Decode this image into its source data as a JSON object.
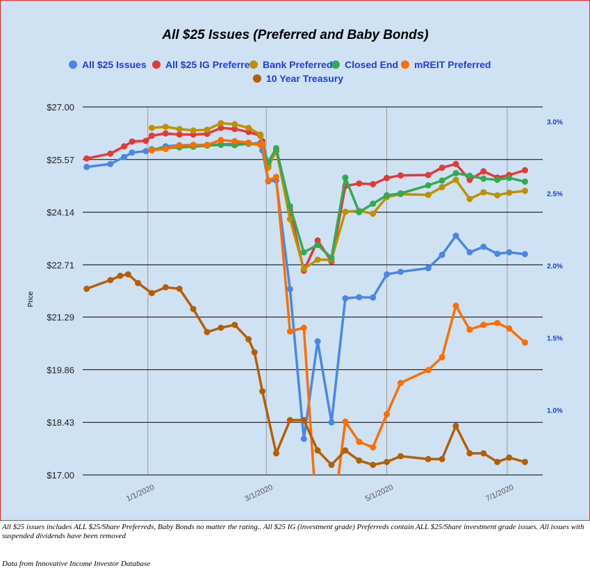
{
  "chart_data": {
    "type": "line",
    "title": "All $25 Issues (Preferred and Baby Bonds)",
    "ylabel": "Price",
    "ylim": [
      17.0,
      27.0
    ],
    "y_ticks": [
      "$27.00",
      "$25.57",
      "$24.14",
      "$22.71",
      "$21.29",
      "$19.86",
      "$18.43",
      "$17.00"
    ],
    "y_tick_values": [
      27.0,
      25.57,
      24.14,
      22.71,
      21.29,
      19.86,
      18.43,
      17.0
    ],
    "y2lim": [
      0.55,
      3.1
    ],
    "y2_ticks": [
      "3.0%",
      "2.5%",
      "2.0%",
      "1.5%",
      "1.0%"
    ],
    "y2_tick_values": [
      3.0,
      2.5,
      2.0,
      1.5,
      1.0
    ],
    "xlim": [
      "2019-11-29",
      "2020-07-19"
    ],
    "x_ticks": [
      "1/1/2020",
      "3/1/2020",
      "5/1/2020",
      "7/1/2020"
    ],
    "x_tick_dates": [
      "2020-01-01",
      "2020-03-01",
      "2020-05-01",
      "2020-07-01"
    ],
    "grid": true,
    "legend_position": "top",
    "series": [
      {
        "name": "All $25 Issues",
        "color": "#4a86e8",
        "axis": "left",
        "points": [
          [
            "2019-12-01",
            25.37
          ],
          [
            "2019-12-13",
            25.45
          ],
          [
            "2019-12-20",
            25.64
          ],
          [
            "2019-12-24",
            25.76
          ],
          [
            "2019-12-31",
            25.8
          ],
          [
            "2020-01-03",
            25.82
          ],
          [
            "2020-01-10",
            25.93
          ],
          [
            "2020-01-17",
            25.96
          ],
          [
            "2020-01-24",
            25.95
          ],
          [
            "2020-01-31",
            25.97
          ],
          [
            "2020-02-07",
            25.98
          ],
          [
            "2020-02-14",
            26.0
          ],
          [
            "2020-02-21",
            26.0
          ],
          [
            "2020-02-27",
            26.02
          ],
          [
            "2020-02-28",
            25.82
          ],
          [
            "2020-03-02",
            24.98
          ],
          [
            "2020-03-06",
            25.0
          ],
          [
            "2020-03-13",
            22.05
          ],
          [
            "2020-03-20",
            17.98
          ],
          [
            "2020-03-27",
            20.63
          ],
          [
            "2020-04-03",
            18.43
          ],
          [
            "2020-04-10",
            21.8
          ],
          [
            "2020-04-17",
            21.83
          ],
          [
            "2020-04-24",
            21.82
          ],
          [
            "2020-05-01",
            22.45
          ],
          [
            "2020-05-08",
            22.52
          ],
          [
            "2020-05-22",
            22.62
          ],
          [
            "2020-05-29",
            22.98
          ],
          [
            "2020-06-05",
            23.5
          ],
          [
            "2020-06-12",
            23.05
          ],
          [
            "2020-06-19",
            23.2
          ],
          [
            "2020-06-26",
            23.01
          ],
          [
            "2020-07-02",
            23.05
          ],
          [
            "2020-07-10",
            23.0
          ]
        ]
      },
      {
        "name": "All $25 IG Preferred",
        "color": "#e53935",
        "axis": "left",
        "points": [
          [
            "2019-12-01",
            25.6
          ],
          [
            "2019-12-13",
            25.73
          ],
          [
            "2019-12-20",
            25.93
          ],
          [
            "2019-12-24",
            26.06
          ],
          [
            "2019-12-31",
            26.08
          ],
          [
            "2020-01-03",
            26.22
          ],
          [
            "2020-01-10",
            26.28
          ],
          [
            "2020-01-17",
            26.25
          ],
          [
            "2020-01-24",
            26.25
          ],
          [
            "2020-01-31",
            26.27
          ],
          [
            "2020-02-07",
            26.43
          ],
          [
            "2020-02-14",
            26.4
          ],
          [
            "2020-02-21",
            26.32
          ],
          [
            "2020-02-27",
            26.22
          ],
          [
            "2020-02-28",
            26.07
          ],
          [
            "2020-03-02",
            25.4
          ],
          [
            "2020-03-06",
            25.8
          ],
          [
            "2020-03-13",
            24.2
          ],
          [
            "2020-03-20",
            22.55
          ],
          [
            "2020-03-27",
            23.37
          ],
          [
            "2020-04-03",
            22.8
          ],
          [
            "2020-04-10",
            24.85
          ],
          [
            "2020-04-17",
            24.92
          ],
          [
            "2020-04-24",
            24.9
          ],
          [
            "2020-05-01",
            25.07
          ],
          [
            "2020-05-08",
            25.14
          ],
          [
            "2020-05-22",
            25.15
          ],
          [
            "2020-05-29",
            25.35
          ],
          [
            "2020-06-05",
            25.45
          ],
          [
            "2020-06-12",
            25.02
          ],
          [
            "2020-06-19",
            25.25
          ],
          [
            "2020-06-26",
            25.08
          ],
          [
            "2020-07-02",
            25.15
          ],
          [
            "2020-07-10",
            25.28
          ]
        ]
      },
      {
        "name": "Bank Preferred",
        "color": "#bf9000",
        "axis": "left",
        "points": [
          [
            "2020-01-03",
            26.43
          ],
          [
            "2020-01-10",
            26.46
          ],
          [
            "2020-01-17",
            26.4
          ],
          [
            "2020-01-24",
            26.36
          ],
          [
            "2020-01-31",
            26.38
          ],
          [
            "2020-02-07",
            26.56
          ],
          [
            "2020-02-14",
            26.53
          ],
          [
            "2020-02-21",
            26.43
          ],
          [
            "2020-02-27",
            26.25
          ],
          [
            "2020-02-28",
            25.98
          ],
          [
            "2020-03-02",
            25.35
          ],
          [
            "2020-03-06",
            25.85
          ],
          [
            "2020-03-13",
            23.95
          ],
          [
            "2020-03-20",
            22.6
          ],
          [
            "2020-03-27",
            22.85
          ],
          [
            "2020-04-03",
            22.85
          ],
          [
            "2020-04-10",
            24.15
          ],
          [
            "2020-04-17",
            24.18
          ],
          [
            "2020-04-24",
            24.1
          ],
          [
            "2020-05-01",
            24.55
          ],
          [
            "2020-05-08",
            24.63
          ],
          [
            "2020-05-22",
            24.61
          ],
          [
            "2020-05-29",
            24.82
          ],
          [
            "2020-06-05",
            25.02
          ],
          [
            "2020-06-12",
            24.5
          ],
          [
            "2020-06-19",
            24.68
          ],
          [
            "2020-06-26",
            24.6
          ],
          [
            "2020-07-02",
            24.67
          ],
          [
            "2020-07-10",
            24.72
          ]
        ]
      },
      {
        "name": "Closed End",
        "color": "#34a853",
        "axis": "left",
        "points": [
          [
            "2020-01-03",
            25.85
          ],
          [
            "2020-01-10",
            25.88
          ],
          [
            "2020-01-17",
            25.9
          ],
          [
            "2020-01-24",
            25.92
          ],
          [
            "2020-01-31",
            25.95
          ],
          [
            "2020-02-07",
            25.97
          ],
          [
            "2020-02-14",
            25.96
          ],
          [
            "2020-02-21",
            26.0
          ],
          [
            "2020-02-27",
            25.97
          ],
          [
            "2020-02-28",
            25.95
          ],
          [
            "2020-03-02",
            25.5
          ],
          [
            "2020-03-06",
            25.88
          ],
          [
            "2020-03-13",
            24.3
          ],
          [
            "2020-03-20",
            23.05
          ],
          [
            "2020-03-27",
            23.25
          ],
          [
            "2020-04-03",
            22.9
          ],
          [
            "2020-04-10",
            25.08
          ],
          [
            "2020-04-17",
            24.14
          ],
          [
            "2020-04-24",
            24.37
          ],
          [
            "2020-05-01",
            24.6
          ],
          [
            "2020-05-08",
            24.65
          ],
          [
            "2020-05-22",
            24.87
          ],
          [
            "2020-05-29",
            25.0
          ],
          [
            "2020-06-05",
            25.2
          ],
          [
            "2020-06-12",
            25.13
          ],
          [
            "2020-06-19",
            25.05
          ],
          [
            "2020-06-26",
            25.02
          ],
          [
            "2020-07-02",
            25.07
          ],
          [
            "2020-07-10",
            24.97
          ]
        ]
      },
      {
        "name": "mREIT Preferred",
        "color": "#ff6d01",
        "axis": "left",
        "points": [
          [
            "2020-01-03",
            25.82
          ],
          [
            "2020-01-10",
            25.86
          ],
          [
            "2020-01-17",
            25.96
          ],
          [
            "2020-01-24",
            25.97
          ],
          [
            "2020-01-31",
            25.97
          ],
          [
            "2020-02-07",
            26.1
          ],
          [
            "2020-02-14",
            26.07
          ],
          [
            "2020-02-21",
            26.03
          ],
          [
            "2020-02-27",
            25.97
          ],
          [
            "2020-02-28",
            26.0
          ],
          [
            "2020-03-02",
            25.0
          ],
          [
            "2020-03-06",
            25.1
          ],
          [
            "2020-03-13",
            20.9
          ],
          [
            "2020-03-20",
            21.0
          ],
          [
            "2020-03-27",
            15.5
          ],
          [
            "2020-04-03",
            15.5
          ],
          [
            "2020-04-10",
            18.45
          ],
          [
            "2020-04-17",
            17.9
          ],
          [
            "2020-04-24",
            17.75
          ],
          [
            "2020-05-01",
            18.65
          ],
          [
            "2020-05-08",
            19.5
          ],
          [
            "2020-05-22",
            19.85
          ],
          [
            "2020-05-29",
            20.2
          ],
          [
            "2020-06-05",
            21.6
          ],
          [
            "2020-06-12",
            20.95
          ],
          [
            "2020-06-19",
            21.08
          ],
          [
            "2020-06-26",
            21.13
          ],
          [
            "2020-07-02",
            20.98
          ],
          [
            "2020-07-10",
            20.6
          ]
        ]
      },
      {
        "name": "10 Year Treasury",
        "color": "#b45f06",
        "axis": "right",
        "points": [
          [
            "2019-12-01",
            1.84
          ],
          [
            "2019-12-13",
            1.9
          ],
          [
            "2019-12-18",
            1.93
          ],
          [
            "2019-12-22",
            1.94
          ],
          [
            "2019-12-27",
            1.88
          ],
          [
            "2020-01-03",
            1.81
          ],
          [
            "2020-01-10",
            1.85
          ],
          [
            "2020-01-17",
            1.84
          ],
          [
            "2020-01-24",
            1.7
          ],
          [
            "2020-01-31",
            1.54
          ],
          [
            "2020-02-07",
            1.57
          ],
          [
            "2020-02-14",
            1.59
          ],
          [
            "2020-02-21",
            1.49
          ],
          [
            "2020-02-24",
            1.4
          ],
          [
            "2020-02-28",
            1.13
          ],
          [
            "2020-03-06",
            0.7
          ],
          [
            "2020-03-13",
            0.93
          ],
          [
            "2020-03-20",
            0.93
          ],
          [
            "2020-03-27",
            0.72
          ],
          [
            "2020-04-03",
            0.62
          ],
          [
            "2020-04-10",
            0.72
          ],
          [
            "2020-04-17",
            0.65
          ],
          [
            "2020-04-24",
            0.62
          ],
          [
            "2020-05-01",
            0.64
          ],
          [
            "2020-05-08",
            0.68
          ],
          [
            "2020-05-22",
            0.66
          ],
          [
            "2020-05-29",
            0.66
          ],
          [
            "2020-06-05",
            0.89
          ],
          [
            "2020-06-12",
            0.7
          ],
          [
            "2020-06-19",
            0.7
          ],
          [
            "2020-06-26",
            0.64
          ],
          [
            "2020-07-02",
            0.67
          ],
          [
            "2020-07-10",
            0.64
          ]
        ]
      }
    ]
  },
  "notes": {
    "footnote": "All $25 issues includes ALL $25/Share Preferreds, Baby Bonds no matter the rating..  All $25 IG (investment grade) Preferreds contain ALL $25/Share investment grade issues.  All issues with suspended dividends have been removed",
    "source": "Data from Innovative Income Investor Database"
  }
}
